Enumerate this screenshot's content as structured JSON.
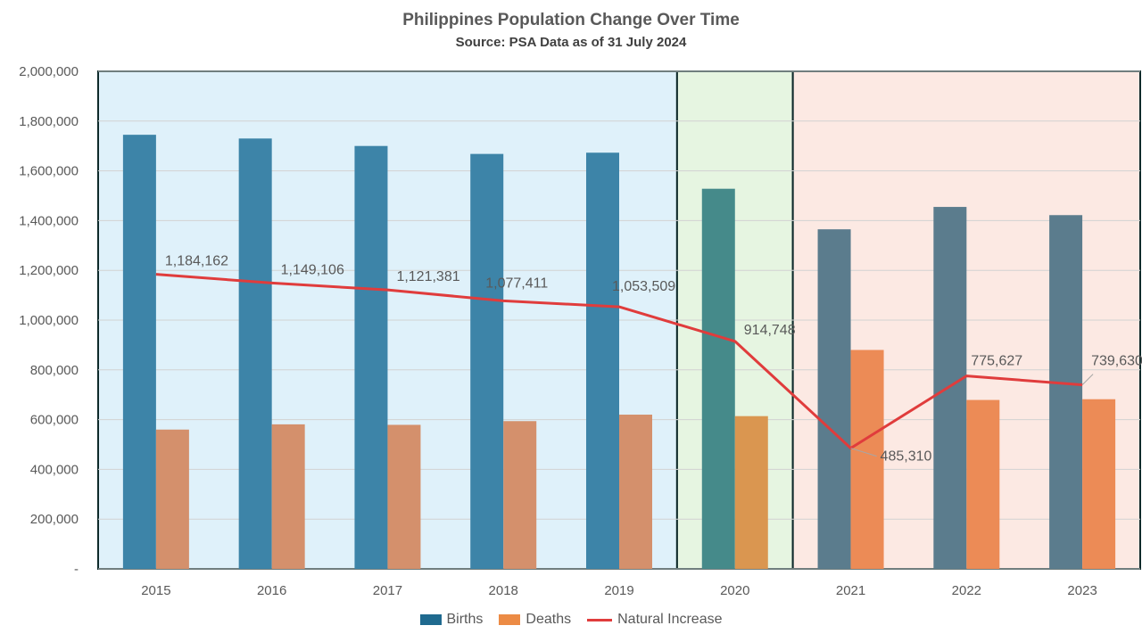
{
  "title": "Philippines Population Change Over Time",
  "subtitle": "Source: PSA Data as of 31 July 2024",
  "chart_data": {
    "type": "bar",
    "categories": [
      "2015",
      "2016",
      "2017",
      "2018",
      "2019",
      "2020",
      "2021",
      "2022",
      "2023"
    ],
    "series": [
      {
        "name": "Births",
        "type": "bar",
        "values": [
          1745000,
          1730000,
          1700000,
          1668000,
          1673000,
          1528000,
          1365000,
          1455000,
          1422000
        ]
      },
      {
        "name": "Deaths",
        "type": "bar",
        "values": [
          560000,
          581000,
          579000,
          594000,
          620000,
          614000,
          880000,
          679000,
          682000
        ]
      },
      {
        "name": "Natural Increase",
        "type": "line",
        "values": [
          1184162,
          1149106,
          1121381,
          1077411,
          1053509,
          914748,
          485310,
          775627,
          739630
        ]
      }
    ],
    "data_labels": [
      "1,184,162",
      "1,149,106",
      "1,121,381",
      "1,077,411",
      "1,053,509",
      "914,748",
      "485,310",
      "775,627",
      "739,630"
    ],
    "y_ticks": [
      "-",
      "200,000",
      "400,000",
      "600,000",
      "800,000",
      "1,000,000",
      "1,200,000",
      "1,400,000",
      "1,600,000",
      "1,800,000",
      "2,000,000"
    ],
    "ylim": [
      0,
      2000000
    ],
    "grid": true,
    "legend": "bottom",
    "periods": [
      {
        "categories": [
          "2015",
          "2016",
          "2017",
          "2018",
          "2019"
        ],
        "background": "#dff1fa",
        "births_color": "#3d84a8",
        "deaths_color": "#d4906c"
      },
      {
        "categories": [
          "2020"
        ],
        "background": "#e6f5e1",
        "births_color": "#458a8a",
        "deaths_color": "#da9650"
      },
      {
        "categories": [
          "2021",
          "2022",
          "2023"
        ],
        "background": "#fce9e3",
        "births_color": "#5b7c8d",
        "deaths_color": "#ec8b56"
      }
    ],
    "colors": {
      "births": "#1f6a8f",
      "deaths": "#ec8b45",
      "natural_increase": "#e03c3c"
    }
  }
}
